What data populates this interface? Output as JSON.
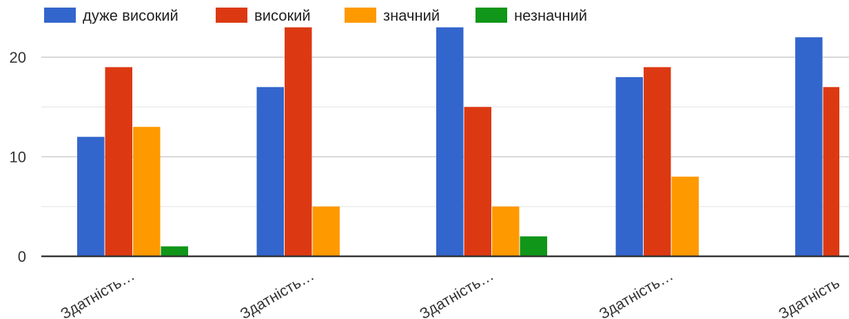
{
  "chart_data": {
    "type": "bar",
    "title": "",
    "xlabel": "",
    "ylabel": "",
    "ylim": [
      0,
      23
    ],
    "yticks": [
      0,
      10,
      20
    ],
    "grid": true,
    "legend_position": "top",
    "categories": [
      "Здатність…",
      "Здатність…",
      "Здатність…",
      "Здатність…",
      "Здатність…"
    ],
    "series": [
      {
        "name": "дуже високий",
        "color": "#3366cc",
        "values": [
          12,
          17,
          23,
          18,
          22
        ]
      },
      {
        "name": "високий",
        "color": "#dc3912",
        "values": [
          19,
          23,
          15,
          19,
          17
        ]
      },
      {
        "name": "значний",
        "color": "#ff9900",
        "values": [
          13,
          5,
          5,
          8,
          null
        ]
      },
      {
        "name": "незначний",
        "color": "#109618",
        "values": [
          1,
          null,
          2,
          null,
          null
        ]
      }
    ]
  }
}
